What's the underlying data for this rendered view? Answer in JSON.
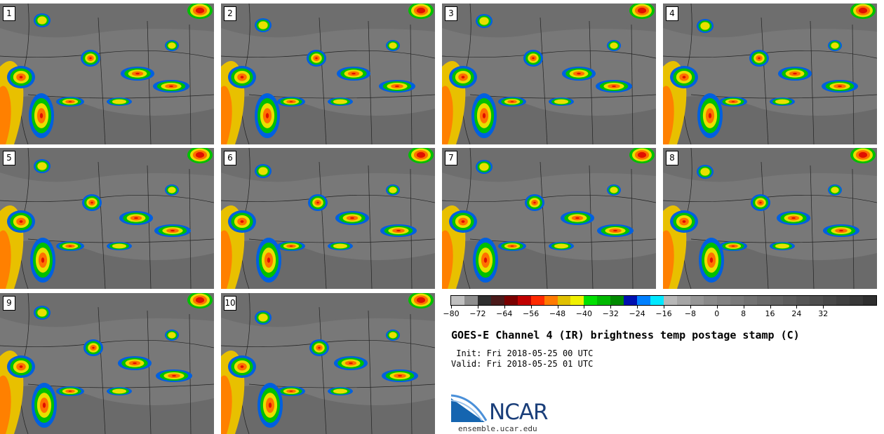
{
  "panels": [
    {
      "label": "1"
    },
    {
      "label": "2"
    },
    {
      "label": "3"
    },
    {
      "label": "4"
    },
    {
      "label": "5"
    },
    {
      "label": "6"
    },
    {
      "label": "7"
    },
    {
      "label": "8"
    },
    {
      "label": "9"
    },
    {
      "label": "10"
    }
  ],
  "colorbar": {
    "colors": [
      "#c0c0c0",
      "#8e8e8e",
      "#2e2e2e",
      "#4a1a1a",
      "#7a0000",
      "#c00000",
      "#ff2a00",
      "#ff7a00",
      "#e0c000",
      "#f0f000",
      "#00e000",
      "#00b800",
      "#008a00",
      "#0010b0",
      "#0080ff",
      "#00e8ff",
      "#b8b8b8",
      "#a6a6a6",
      "#969696",
      "#8a8a8a",
      "#828282",
      "#7a7a7a",
      "#727272",
      "#6a6a6a",
      "#636363",
      "#5c5c5c",
      "#555555",
      "#4e4e4e",
      "#474747",
      "#404040",
      "#383838",
      "#2e2e2e"
    ],
    "ticks": [
      "−80",
      "−72",
      "−64",
      "−56",
      "−48",
      "−40",
      "−32",
      "−24",
      "−16",
      "−8",
      "0",
      "8",
      "16",
      "24",
      "32"
    ]
  },
  "title": "GOES-E Channel 4 (IR) brightness temp postage stamp (C)",
  "init": " Init: Fri 2018-05-25 00 UTC",
  "valid": "Valid: Fri 2018-05-25 01 UTC",
  "logo_text": "NCAR",
  "url": "ensemble.ucar.edu"
}
